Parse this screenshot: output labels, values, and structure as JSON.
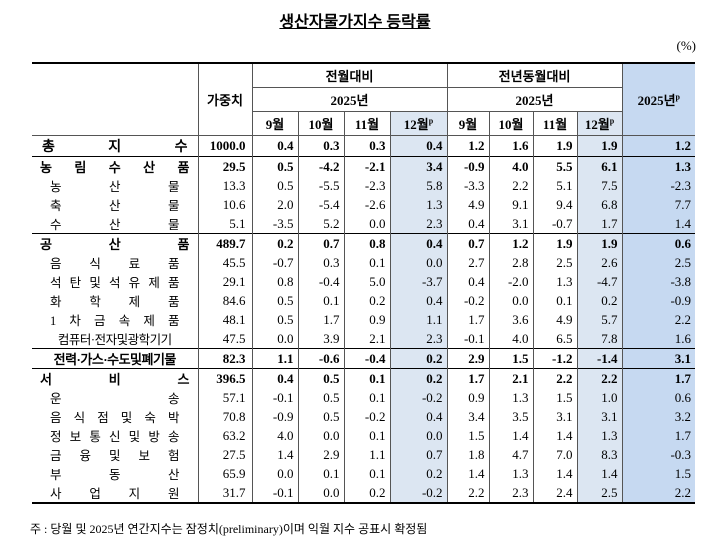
{
  "title": "생산자물가지수 등락률",
  "unit": "(%)",
  "header": {
    "weight": "가중치",
    "mom": "전월대비",
    "yoy": "전년동월대비",
    "year": "2025년",
    "months": [
      "9월",
      "10월",
      "11월",
      "12월"
    ],
    "prelim_mark": "p"
  },
  "rows": [
    {
      "label": "총 지 수",
      "level": "top",
      "weight": "1000.0",
      "mom": [
        "0.4",
        "0.3",
        "0.3",
        "0.4"
      ],
      "yoy": [
        "1.2",
        "1.6",
        "1.9",
        "1.9"
      ],
      "annual": "1.2"
    },
    {
      "label": "농 림 수 산 품",
      "level": "main",
      "weight": "29.5",
      "mom": [
        "0.5",
        "-4.2",
        "-2.1",
        "3.4"
      ],
      "yoy": [
        "-0.9",
        "4.0",
        "5.5",
        "6.1"
      ],
      "annual": "1.3"
    },
    {
      "label": "농 산 물",
      "level": "sub",
      "weight": "13.3",
      "mom": [
        "0.5",
        "-5.5",
        "-2.3",
        "5.8"
      ],
      "yoy": [
        "-3.3",
        "2.2",
        "5.1",
        "7.5"
      ],
      "annual": "-2.3"
    },
    {
      "label": "축 산 물",
      "level": "sub",
      "weight": "10.6",
      "mom": [
        "2.0",
        "-5.4",
        "-2.6",
        "1.3"
      ],
      "yoy": [
        "4.9",
        "9.1",
        "9.4",
        "6.8"
      ],
      "annual": "7.7"
    },
    {
      "label": "수 산 물",
      "level": "sub",
      "weight": "5.1",
      "mom": [
        "-3.5",
        "5.2",
        "0.0",
        "2.3"
      ],
      "yoy": [
        "0.4",
        "3.1",
        "-0.7",
        "1.7"
      ],
      "annual": "1.4"
    },
    {
      "label": "공 산 품",
      "level": "main",
      "weight": "489.7",
      "mom": [
        "0.2",
        "0.7",
        "0.8",
        "0.4"
      ],
      "yoy": [
        "0.7",
        "1.2",
        "1.9",
        "1.9"
      ],
      "annual": "0.6"
    },
    {
      "label": "음 식 료 품",
      "level": "sub",
      "weight": "45.5",
      "mom": [
        "-0.7",
        "0.3",
        "0.1",
        "0.0"
      ],
      "yoy": [
        "2.7",
        "2.8",
        "2.5",
        "2.6"
      ],
      "annual": "2.5"
    },
    {
      "label": "석 탄 및 석 유 제 품",
      "level": "sub",
      "weight": "29.1",
      "mom": [
        "0.8",
        "-0.4",
        "5.0",
        "-3.7"
      ],
      "yoy": [
        "0.4",
        "-2.0",
        "1.3",
        "-4.7"
      ],
      "annual": "-3.8"
    },
    {
      "label": "화 학 제 품",
      "level": "sub",
      "weight": "84.6",
      "mom": [
        "0.5",
        "0.1",
        "0.2",
        "0.4"
      ],
      "yoy": [
        "-0.2",
        "0.0",
        "0.1",
        "0.2"
      ],
      "annual": "-0.9"
    },
    {
      "label": "1 차 금 속 제 품",
      "level": "sub",
      "weight": "48.1",
      "mom": [
        "0.5",
        "1.7",
        "0.9",
        "1.1"
      ],
      "yoy": [
        "1.7",
        "3.6",
        "4.9",
        "5.7"
      ],
      "annual": "2.2"
    },
    {
      "label": "컴퓨터·전자및광학기기",
      "level": "sub",
      "weight": "47.5",
      "mom": [
        "0.0",
        "3.9",
        "2.1",
        "2.3"
      ],
      "yoy": [
        "-0.1",
        "4.0",
        "6.5",
        "7.8"
      ],
      "annual": "1.6"
    },
    {
      "label": "전력·가스·수도및폐기물",
      "level": "main",
      "weight": "82.3",
      "mom": [
        "1.1",
        "-0.6",
        "-0.4",
        "0.2"
      ],
      "yoy": [
        "2.9",
        "1.5",
        "-1.2",
        "-1.4"
      ],
      "annual": "3.1"
    },
    {
      "label": "서 비 스",
      "level": "main",
      "weight": "396.5",
      "mom": [
        "0.4",
        "0.5",
        "0.1",
        "0.2"
      ],
      "yoy": [
        "1.7",
        "2.1",
        "2.2",
        "2.2"
      ],
      "annual": "1.7"
    },
    {
      "label": "운 송",
      "level": "sub",
      "weight": "57.1",
      "mom": [
        "-0.1",
        "0.5",
        "0.1",
        "-0.2"
      ],
      "yoy": [
        "0.9",
        "1.3",
        "1.5",
        "1.0"
      ],
      "annual": "0.6"
    },
    {
      "label": "음 식 점 및 숙 박",
      "level": "sub",
      "weight": "70.8",
      "mom": [
        "-0.9",
        "0.5",
        "-0.2",
        "0.4"
      ],
      "yoy": [
        "3.4",
        "3.5",
        "3.1",
        "3.1"
      ],
      "annual": "3.2"
    },
    {
      "label": "정 보 통 신 및 방 송",
      "level": "sub",
      "weight": "63.2",
      "mom": [
        "4.0",
        "0.0",
        "0.1",
        "0.0"
      ],
      "yoy": [
        "1.5",
        "1.4",
        "1.4",
        "1.3"
      ],
      "annual": "1.7"
    },
    {
      "label": "금 융 및 보 험",
      "level": "sub",
      "weight": "27.5",
      "mom": [
        "1.4",
        "2.9",
        "1.1",
        "0.7"
      ],
      "yoy": [
        "1.8",
        "4.7",
        "7.0",
        "8.3"
      ],
      "annual": "-0.3"
    },
    {
      "label": "부 동 산",
      "level": "sub",
      "weight": "65.9",
      "mom": [
        "0.0",
        "0.1",
        "0.1",
        "0.2"
      ],
      "yoy": [
        "1.4",
        "1.3",
        "1.4",
        "1.4"
      ],
      "annual": "1.5"
    },
    {
      "label": "사 업 지 원",
      "level": "sub",
      "weight": "31.7",
      "mom": [
        "-0.1",
        "0.0",
        "0.2",
        "-0.2"
      ],
      "yoy": [
        "2.2",
        "2.3",
        "2.4",
        "2.5"
      ],
      "annual": "2.2"
    }
  ],
  "note": "주 : 당월 및 2025년 연간지수는 잠정치(preliminary)이며 익월 지수 공표시 확정됨"
}
